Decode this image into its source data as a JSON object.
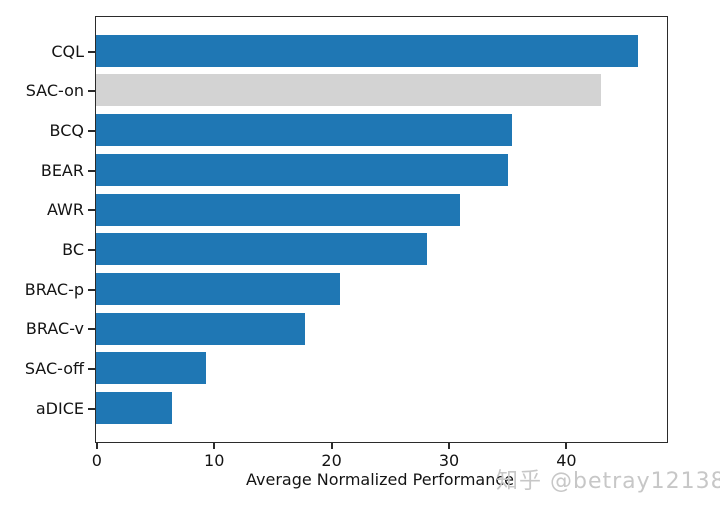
{
  "figure": {
    "watermark_text": "知乎 @betray12138"
  },
  "chart_data": {
    "type": "bar",
    "orientation": "horizontal",
    "title": "",
    "xlabel": "Average Normalized Performance",
    "ylabel": "",
    "categories": [
      "CQL",
      "SAC-on",
      "BCQ",
      "BEAR",
      "AWR",
      "BC",
      "BRAC-p",
      "BRAC-v",
      "SAC-off",
      "aDICE"
    ],
    "values": [
      46.2,
      43.0,
      35.4,
      35.1,
      31.0,
      28.2,
      20.8,
      17.8,
      9.4,
      6.5
    ],
    "bar_colors": [
      "#1f77b4",
      "#d3d3d3",
      "#1f77b4",
      "#1f77b4",
      "#1f77b4",
      "#1f77b4",
      "#1f77b4",
      "#1f77b4",
      "#1f77b4",
      "#1f77b4"
    ],
    "x_ticks": [
      0,
      10,
      20,
      30,
      40
    ],
    "xlim": [
      0,
      48.5
    ],
    "grid": false,
    "legend": "none"
  },
  "colors": {
    "bar_default": "#1f77b4",
    "bar_highlight": "#d3d3d3",
    "spine": "#2b2b2b",
    "tick_text": "#141414",
    "watermark": "#c7c7c7"
  }
}
